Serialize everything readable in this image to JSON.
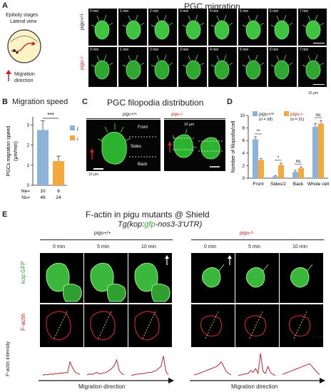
{
  "panels": {
    "A": {
      "letter": "A",
      "title": "PGC migration",
      "stages_line1": "Epiboly stages",
      "stages_line2": "Lateral view",
      "migration_line1": "Migration",
      "migration_line2": "direction",
      "row_labels": [
        "pigu+/+",
        "pigu-/-"
      ],
      "times": [
        "0 min",
        "1 min",
        "2 min",
        "3 min",
        "4 min",
        "5 min",
        "6 min",
        "7 min"
      ],
      "scale": "10 μm"
    },
    "B": {
      "letter": "B",
      "title": "Migration speed",
      "ylabel_line1": "PGCs migration speed",
      "ylabel_line2": "(μm/min)",
      "legend": [
        "pigu+/+",
        "pigu-/-"
      ],
      "sig": "***",
      "ne_label": "Ne=",
      "nc_label": "Nc=",
      "ne": [
        "10",
        "6"
      ],
      "nc": [
        "49",
        "24"
      ]
    },
    "C": {
      "letter": "C",
      "title": "PGC filopodia distribution",
      "groups": [
        "pigu+/+",
        "pigu-/-"
      ],
      "front": "Front",
      "sides": "Sides",
      "back": "Back",
      "scale_left": "10 μm",
      "scale_right": "10 μm"
    },
    "D": {
      "letter": "D",
      "ylabel": "Number of filopodia/cell",
      "legend": [
        {
          "name": "pigu+/+",
          "n": "(n = 28)"
        },
        {
          "name": "pigu-/-",
          "n": "(n = 21)"
        }
      ],
      "sig": [
        "**",
        "*",
        "ns",
        "ns"
      ]
    },
    "E": {
      "letter": "E",
      "title": "F-actin in pigu mutants @ Shield",
      "subtitle_pre": "Tg(kop:",
      "subtitle_gfp": "gfp",
      "subtitle_post": "-nos3-3'UTR)",
      "groups": [
        "pigu+/+",
        "pigu-/-"
      ],
      "times": [
        "0 min",
        "5 min",
        "10 min"
      ],
      "row_kop": "kop:GFP",
      "row_factin": "F-actin",
      "intensity_label": "F-actin intensity",
      "xlabel": "Migration direction",
      "scale": "10 μm"
    }
  },
  "chart_data": [
    {
      "type": "bar",
      "panel": "B",
      "title": "Migration speed",
      "ylabel": "PGCs migration speed (μm/min)",
      "categories": [
        "pigu+/+",
        "pigu-/-"
      ],
      "values": [
        2.75,
        1.2
      ],
      "errors": [
        0.45,
        0.25
      ],
      "yticks": [
        0,
        1,
        2,
        3
      ],
      "ylim": [
        0,
        3.4
      ],
      "colors": [
        "#8db3d9",
        "#f3a93c"
      ],
      "legend_position": "right"
    },
    {
      "type": "bar",
      "panel": "D",
      "ylabel": "Number of filopodia/cell",
      "categories": [
        "Front",
        "Sides/2",
        "Back",
        "Whole cell"
      ],
      "series": [
        {
          "name": "pigu+/+",
          "values": [
            6.2,
            0.3,
            1.0,
            8.2
          ],
          "errors": [
            0.4,
            0.1,
            0.25,
            0.5
          ],
          "color": "#8db3d9"
        },
        {
          "name": "pigu-/-",
          "values": [
            2.9,
            2.1,
            1.6,
            8.7
          ],
          "errors": [
            0.2,
            0.3,
            0.2,
            0.5
          ],
          "color": "#f3a93c"
        }
      ],
      "yticks": [
        0,
        2,
        4,
        6,
        8,
        10
      ],
      "ylim": [
        0,
        10
      ],
      "legend_position": "top-left"
    }
  ]
}
